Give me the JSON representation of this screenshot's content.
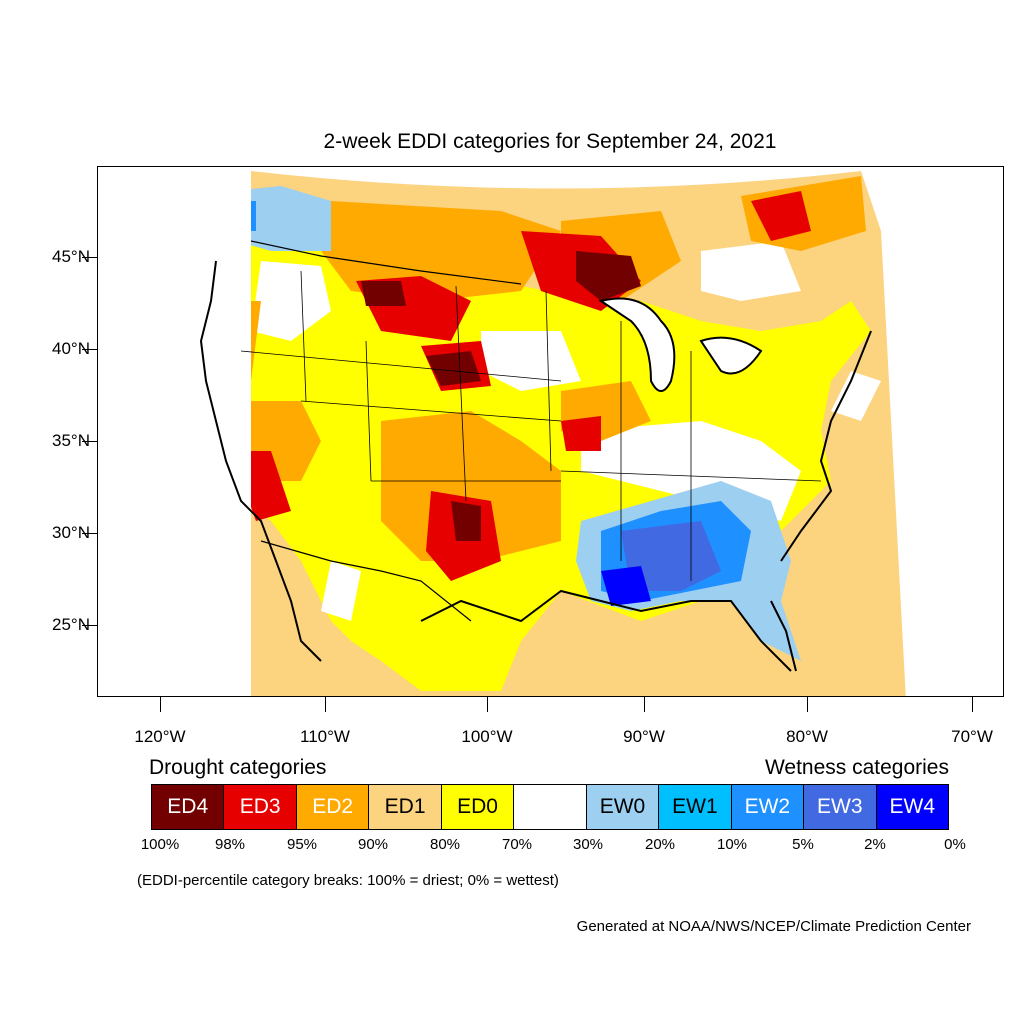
{
  "title": "2-week EDDI categories for September 24, 2021",
  "lat_labels": [
    "45°N",
    "40°N",
    "35°N",
    "30°N",
    "25°N"
  ],
  "lon_labels": [
    "120°W",
    "110°W",
    "100°W",
    "90°W",
    "80°W",
    "70°W"
  ],
  "legend": {
    "drought_title": "Drought categories",
    "wetness_title": "Wetness categories",
    "boxes": [
      {
        "label": "ED4",
        "color": "#730000",
        "text_color": "#ffffff"
      },
      {
        "label": "ED3",
        "color": "#e60000",
        "text_color": "#ffffff"
      },
      {
        "label": "ED2",
        "color": "#ffaa00",
        "text_color": "#ffffff"
      },
      {
        "label": "ED1",
        "color": "#fcd37f",
        "text_color": "#000000"
      },
      {
        "label": "ED0",
        "color": "#ffff00",
        "text_color": "#000000"
      },
      {
        "label": "",
        "color": "#ffffff",
        "text_color": "#000000"
      },
      {
        "label": "EW0",
        "color": "#9ccff0",
        "text_color": "#000000"
      },
      {
        "label": "EW1",
        "color": "#00bfff",
        "text_color": "#000000"
      },
      {
        "label": "EW2",
        "color": "#1e90ff",
        "text_color": "#ffffff"
      },
      {
        "label": "EW3",
        "color": "#4169e1",
        "text_color": "#ffffff"
      },
      {
        "label": "EW4",
        "color": "#0000ff",
        "text_color": "#ffffff"
      }
    ],
    "percentiles": [
      "100%",
      "98%",
      "95%",
      "90%",
      "80%",
      "70%",
      "30%",
      "20%",
      "10%",
      "5%",
      "2%",
      "0%"
    ]
  },
  "note": "(EDDI-percentile category breaks: 100% = driest; 0% = wettest)",
  "credit": "Generated at NOAA/NWS/NCEP/Climate Prediction Center"
}
